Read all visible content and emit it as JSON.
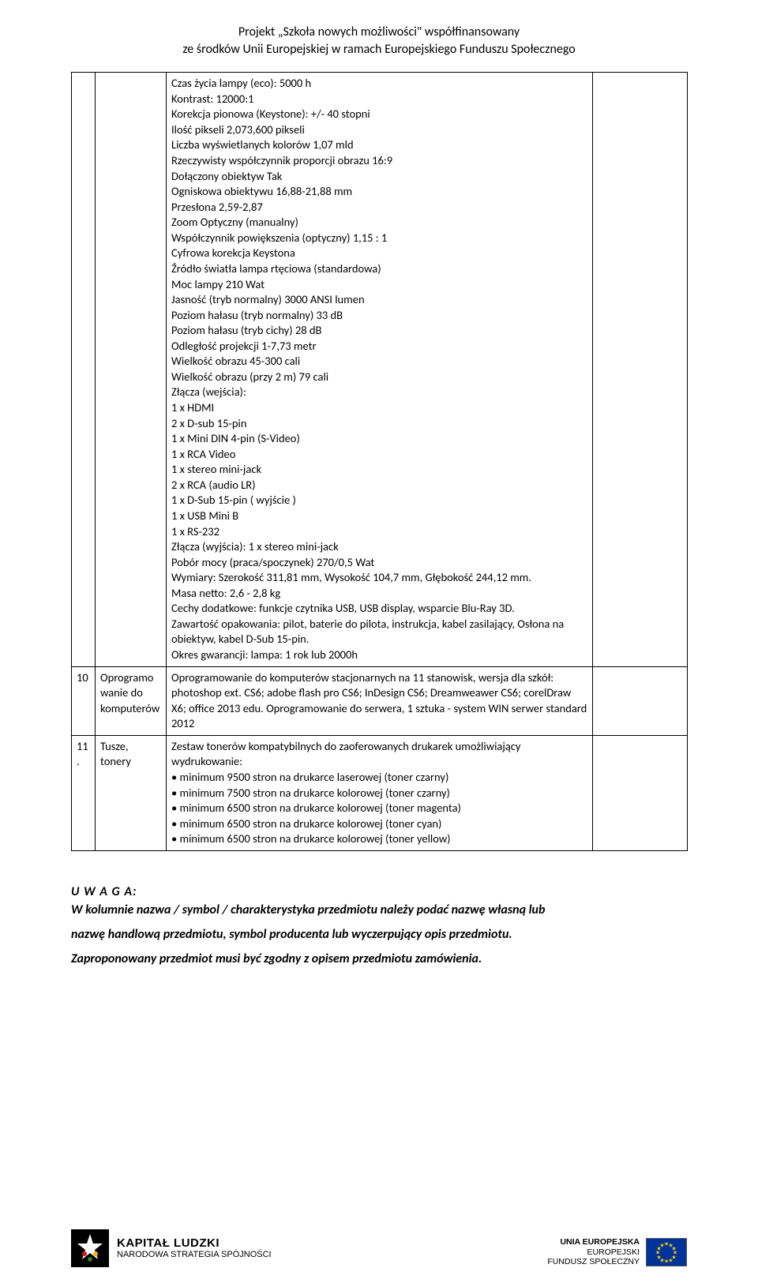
{
  "header": {
    "line1": "Projekt „Szkoła nowych możliwości\" współfinansowany",
    "line2": "ze środków Unii Europejskiej w ramach Europejskiego Funduszu Społecznego"
  },
  "table": {
    "rows": [
      {
        "num": "",
        "name": "",
        "spec": [
          "Czas życia lampy (eco): 5000 h",
          "Kontrast: 12000:1",
          "Korekcja pionowa (Keystone): +/- 40 stopni",
          "Ilość pikseli  2,073,600 pikseli",
          "Liczba wyświetlanych kolorów  1,07 mld",
          "Rzeczywisty współczynnik proporcji obrazu  16:9",
          "Dołączony obiektyw  Tak",
          "Ogniskowa obiektywu  16,88-21,88 mm",
          "Przesłona  2,59-2,87",
          "Zoom  Optyczny (manualny)",
          "Współczynnik powiększenia (optyczny)  1,15 : 1",
          "Cyfrowa korekcja Keystona",
          "Źródło światła  lampa rtęciowa (standardowa)",
          "Moc lampy  210 Wat",
          "Jasność (tryb normalny)  3000 ANSI lumen",
          "Poziom hałasu (tryb normalny)  33 dB",
          "Poziom hałasu (tryb cichy)  28 dB",
          "Odległość projekcji  1-7,73 metr",
          "Wielkość obrazu  45-300 cali",
          "Wielkość obrazu (przy 2 m)  79 cali",
          "Złącza (wejścia):",
          "1 x HDMI",
          "2 x D-sub 15-pin",
          "1 x Mini DIN 4-pin (S-Video)",
          "1 x RCA Video",
          "1 x stereo mini-jack",
          "2 x RCA (audio LR)",
          "1 x D-Sub 15-pin ( wyjście )",
          "1 x USB Mini B",
          "1 x RS-232",
          "Złącza (wyjścia): 1 x stereo mini-jack",
          "Pobór mocy (praca/spoczynek)  270/0,5 Wat",
          "Wymiary: Szerokość 311,81 mm, Wysokość 104,7 mm, Głębokość 244,12 mm.",
          "Masa netto: 2,6 - 2,8 kg",
          "Cechy dodatkowe: funkcje czytnika USB, USB display, wsparcie Blu-Ray 3D.",
          "Zawartość opakowania: pilot, baterie do pilota, instrukcja, kabel zasilający, Osłona na obiektyw, kabel D-Sub 15-pin.",
          "Okres gwarancji: lampa: 1 rok lub 2000h"
        ]
      },
      {
        "num": "10",
        "name": "Oprogramowanie do komputerów",
        "spec": [
          "Oprogramowanie do komputerów stacjonarnych na 11 stanowisk, wersja dla szkół: photoshop ext. CS6; adobe flash pro CS6; InDesign CS6; Dreamweawer CS6;  corelDraw X6; office 2013 edu. Oprogramowanie do serwera, 1 sztuka - system WIN serwer standard 2012"
        ]
      },
      {
        "num": "11.",
        "name": "Tusze, tonery",
        "spec": [
          "Zestaw tonerów kompatybilnych do zaoferowanych drukarek umożliwiający wydrukowanie:",
          "• minimum 9500 stron na drukarce laserowej (toner czarny)",
          "• minimum 7500 stron na drukarce kolorowej (toner czarny)",
          "• minimum 6500 stron na drukarce kolorowej (toner magenta)",
          "• minimum 6500 stron na drukarce kolorowej (toner cyan)",
          "• minimum 6500 stron na drukarce kolorowej (toner yellow)"
        ]
      }
    ]
  },
  "notice": {
    "title": "U W A G A:",
    "p1a": "W kolumnie nazwa / symbol / charakterystyka przedmiotu należy podać nazwę własną lub",
    "p1b": "nazwę handlową przedmiotu, symbol producenta lub wyczerpujący opis przedmiotu.",
    "p2": "Zaproponowany przedmiot musi być zgodny z opisem przedmiotu zamówienia."
  },
  "footer": {
    "left": {
      "big": "KAPITAŁ LUDZKI",
      "small": "NARODOWA STRATEGIA SPÓJNOŚCI"
    },
    "right": {
      "l1": "UNIA EUROPEJSKA",
      "l2": "EUROPEJSKI",
      "l3": "FUNDUSZ SPOŁECZNY"
    }
  }
}
